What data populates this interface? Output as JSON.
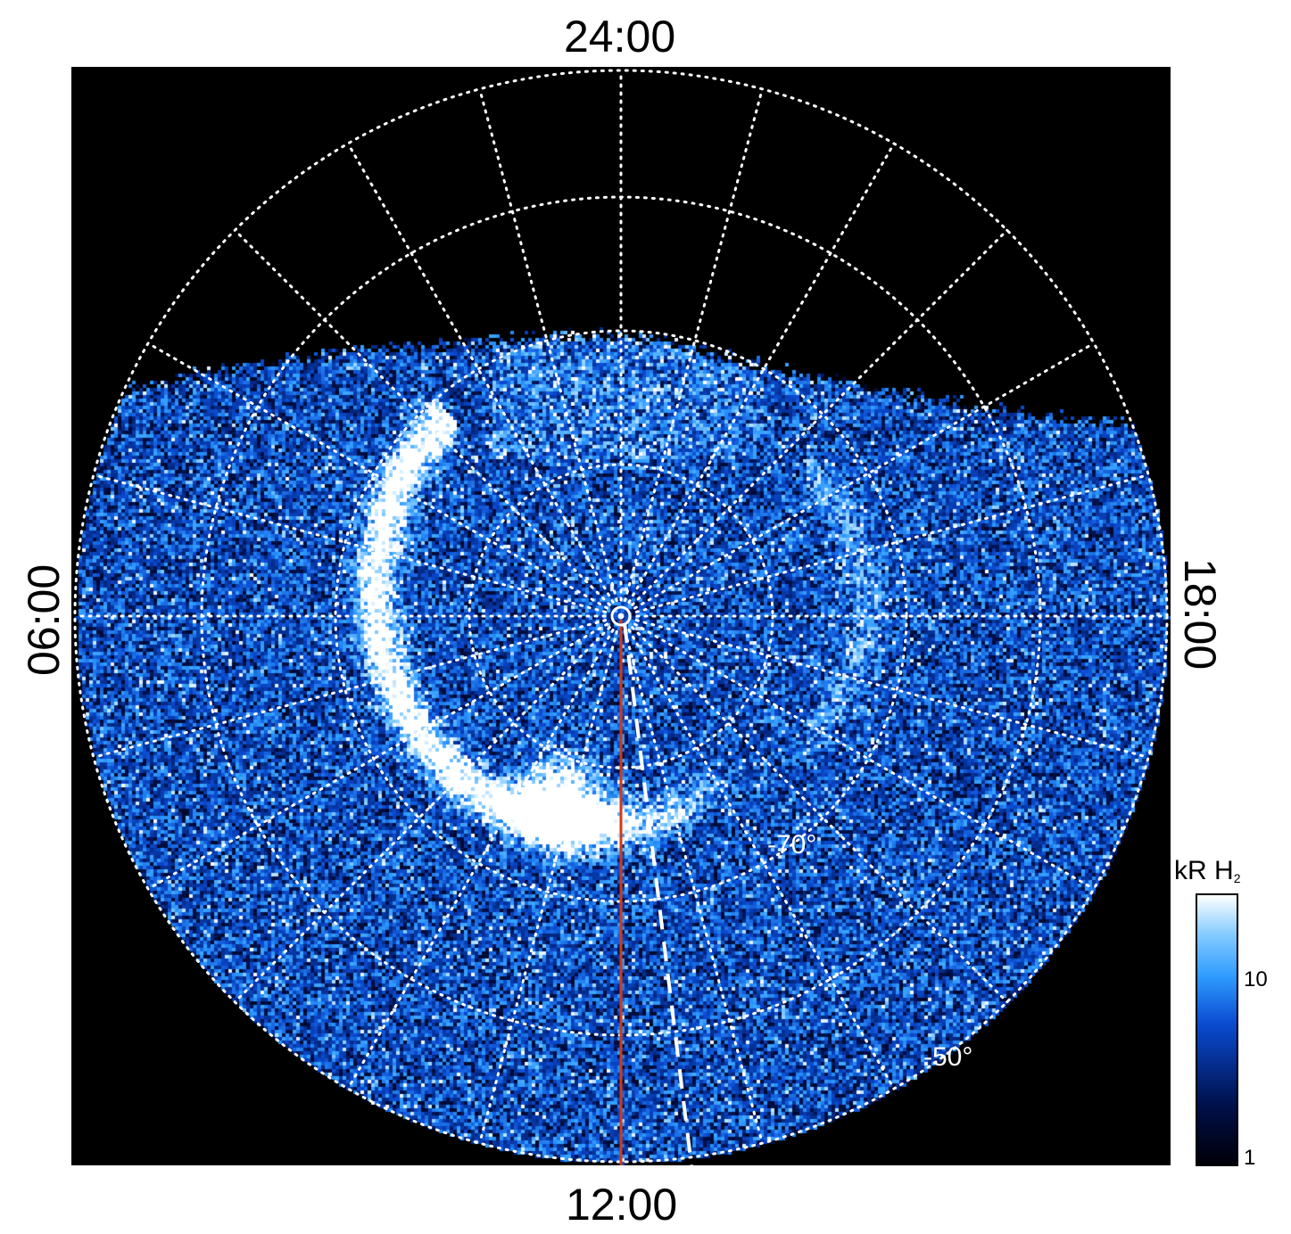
{
  "local_time_labels": {
    "top": "24:00",
    "bottom": "12:00",
    "left": "06:00",
    "right": "18:00"
  },
  "latitude_labels": {
    "inner": "-70°",
    "outer": "-50°"
  },
  "colorbar": {
    "unit": "kR",
    "species": "H",
    "species_subscript": "2",
    "ticks": [
      "10",
      "1"
    ],
    "scale": "log",
    "colors": [
      "#000008",
      "#00104a",
      "#0a4ad0",
      "#2f9cff",
      "#88cdff",
      "#ffffff"
    ]
  },
  "colors": {
    "background": "#000000",
    "grid": "#ffffff",
    "meridian_line": "#d23a14",
    "emission": "#2f9cff"
  }
}
